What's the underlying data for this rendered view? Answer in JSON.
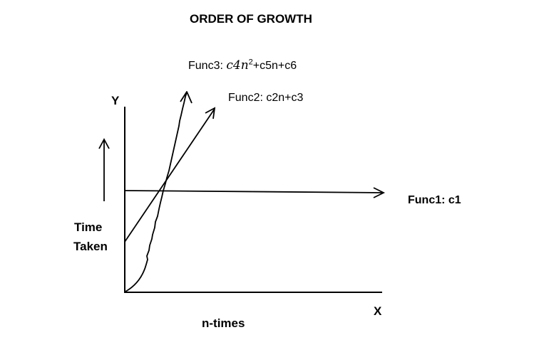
{
  "title": "ORDER OF GROWTH",
  "func3": {
    "prefix": "Func3: ",
    "math": "c4n",
    "exponent": "2",
    "suffix": "+c5n+c6"
  },
  "func2": "Func2: c2n+c3",
  "func1": "Func1: c1",
  "axes": {
    "y_label": "Y",
    "x_label": "X",
    "y_caption_line1": "Time",
    "y_caption_line2": "Taken",
    "x_caption": "n-times"
  },
  "colors": {
    "ink": "#000000",
    "background": "#ffffff"
  }
}
